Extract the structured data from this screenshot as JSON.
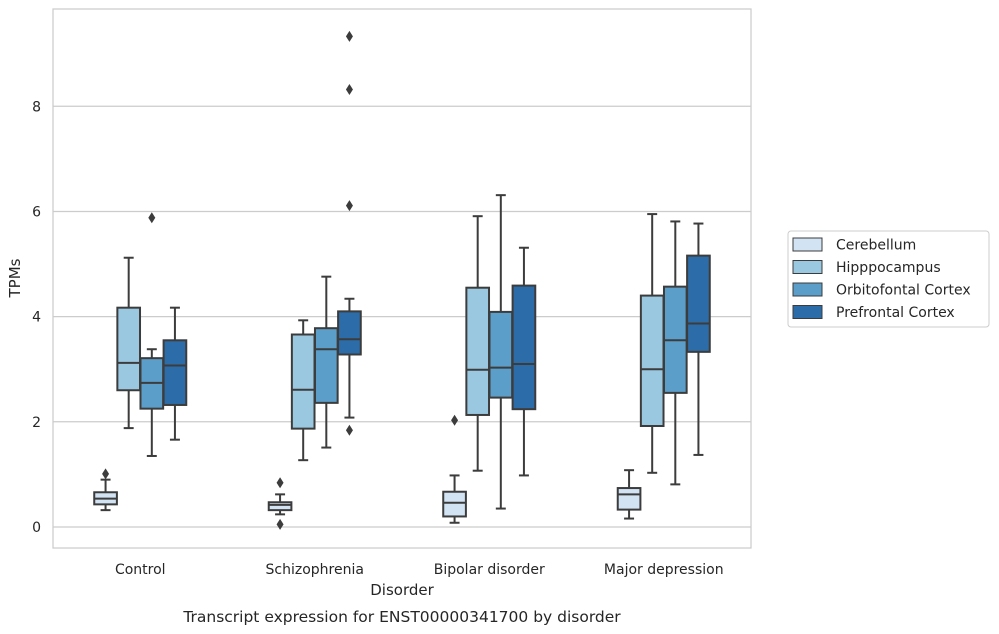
{
  "chart_data": {
    "type": "box",
    "title": "",
    "caption": "Transcript expression for ENST00000341700 by disorder",
    "xlabel": "Disorder",
    "ylabel": "TPMs",
    "ylim": [
      -0.4,
      9.85
    ],
    "yticks": [
      0,
      2,
      4,
      6,
      8
    ],
    "categories": [
      "Control",
      "Schizophrenia",
      "Bipolar disorder",
      "Major depression"
    ],
    "grid": "horizontal",
    "legend_position": "right",
    "series": [
      {
        "name": "Cerebellum",
        "color": "#d2e3f3",
        "boxes": [
          {
            "whisker_low": 0.32,
            "q1": 0.43,
            "median": 0.54,
            "q3": 0.66,
            "whisker_high": 0.9,
            "outliers": [
              1.01
            ]
          },
          {
            "whisker_low": 0.24,
            "q1": 0.32,
            "median": 0.42,
            "q3": 0.47,
            "whisker_high": 0.62,
            "outliers": [
              0.84,
              0.05
            ]
          },
          {
            "whisker_low": 0.08,
            "q1": 0.2,
            "median": 0.46,
            "q3": 0.67,
            "whisker_high": 0.98,
            "outliers": [
              2.03
            ]
          },
          {
            "whisker_low": 0.16,
            "q1": 0.33,
            "median": 0.62,
            "q3": 0.74,
            "whisker_high": 1.08,
            "outliers": []
          }
        ]
      },
      {
        "name": "Hipppocampus",
        "color": "#9ac8e0",
        "boxes": [
          {
            "whisker_low": 1.88,
            "q1": 2.6,
            "median": 3.12,
            "q3": 4.17,
            "whisker_high": 5.12,
            "outliers": []
          },
          {
            "whisker_low": 1.27,
            "q1": 1.87,
            "median": 2.61,
            "q3": 3.66,
            "whisker_high": 3.93,
            "outliers": []
          },
          {
            "whisker_low": 1.07,
            "q1": 2.13,
            "median": 2.99,
            "q3": 4.55,
            "whisker_high": 5.91,
            "outliers": []
          },
          {
            "whisker_low": 1.03,
            "q1": 1.92,
            "median": 3.0,
            "q3": 4.4,
            "whisker_high": 5.95,
            "outliers": []
          }
        ]
      },
      {
        "name": "Orbitofontal Cortex",
        "color": "#5a9ec9",
        "boxes": [
          {
            "whisker_low": 1.35,
            "q1": 2.25,
            "median": 2.74,
            "q3": 3.21,
            "whisker_high": 3.38,
            "outliers": [
              5.88
            ]
          },
          {
            "whisker_low": 1.51,
            "q1": 2.36,
            "median": 3.38,
            "q3": 3.78,
            "whisker_high": 4.76,
            "outliers": []
          },
          {
            "whisker_low": 0.35,
            "q1": 2.46,
            "median": 3.03,
            "q3": 4.09,
            "whisker_high": 6.31,
            "outliers": []
          },
          {
            "whisker_low": 0.81,
            "q1": 2.55,
            "median": 3.55,
            "q3": 4.57,
            "whisker_high": 5.81,
            "outliers": []
          }
        ]
      },
      {
        "name": "Prefrontal Cortex",
        "color": "#2c6ca8",
        "boxes": [
          {
            "whisker_low": 1.66,
            "q1": 2.32,
            "median": 3.07,
            "q3": 3.55,
            "whisker_high": 4.17,
            "outliers": []
          },
          {
            "whisker_low": 2.08,
            "q1": 3.28,
            "median": 3.57,
            "q3": 4.1,
            "whisker_high": 4.34,
            "outliers": [
              1.84,
              6.11,
              8.32,
              9.33
            ]
          },
          {
            "whisker_low": 0.98,
            "q1": 2.24,
            "median": 3.1,
            "q3": 4.59,
            "whisker_high": 5.31,
            "outliers": []
          },
          {
            "whisker_low": 1.37,
            "q1": 3.33,
            "median": 3.87,
            "q3": 5.16,
            "whisker_high": 5.77,
            "outliers": []
          }
        ]
      }
    ]
  }
}
